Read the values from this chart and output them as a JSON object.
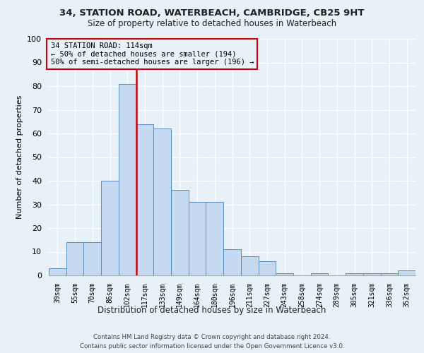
{
  "title1": "34, STATION ROAD, WATERBEACH, CAMBRIDGE, CB25 9HT",
  "title2": "Size of property relative to detached houses in Waterbeach",
  "xlabel": "Distribution of detached houses by size in Waterbeach",
  "ylabel": "Number of detached properties",
  "categories": [
    "39sqm",
    "55sqm",
    "70sqm",
    "86sqm",
    "102sqm",
    "117sqm",
    "133sqm",
    "149sqm",
    "164sqm",
    "180sqm",
    "196sqm",
    "211sqm",
    "227sqm",
    "243sqm",
    "258sqm",
    "274sqm",
    "289sqm",
    "305sqm",
    "321sqm",
    "336sqm",
    "352sqm"
  ],
  "values": [
    3,
    14,
    14,
    40,
    81,
    64,
    62,
    36,
    31,
    31,
    11,
    8,
    6,
    1,
    0,
    1,
    0,
    1,
    1,
    1,
    2
  ],
  "bar_color": "#c5d9f0",
  "bar_edge_color": "#5b8ec4",
  "vline_x": 4.5,
  "vline_color": "#cc0000",
  "annotation_title": "34 STATION ROAD: 114sqm",
  "annotation_line1": "← 50% of detached houses are smaller (194)",
  "annotation_line2": "50% of semi-detached houses are larger (196) →",
  "annotation_box_edgecolor": "#cc0000",
  "background_color": "#e8f0f8",
  "grid_color": "#ffffff",
  "footer1": "Contains HM Land Registry data © Crown copyright and database right 2024.",
  "footer2": "Contains public sector information licensed under the Open Government Licence v3.0.",
  "ylim": [
    0,
    100
  ],
  "yticks": [
    0,
    10,
    20,
    30,
    40,
    50,
    60,
    70,
    80,
    90,
    100
  ]
}
